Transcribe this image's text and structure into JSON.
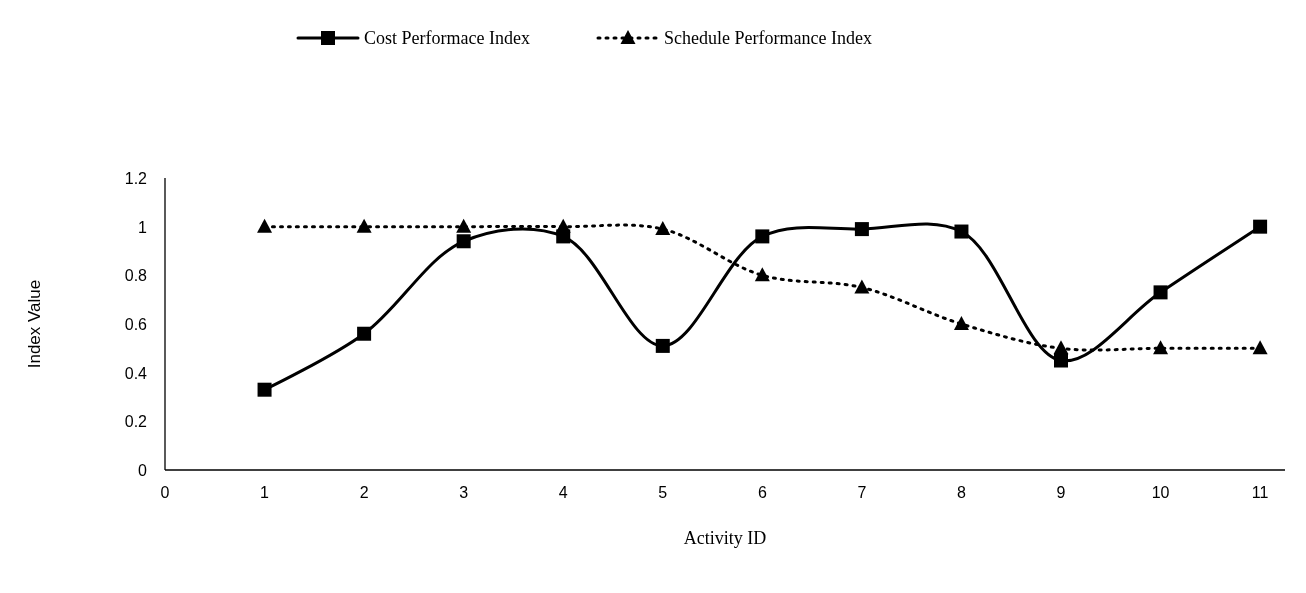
{
  "chart_data": {
    "type": "line",
    "xlabel": "Activity ID",
    "ylabel": "Index Value",
    "x": [
      1,
      2,
      3,
      4,
      5,
      6,
      7,
      8,
      9,
      10,
      11
    ],
    "xlim": [
      0,
      11.25
    ],
    "xticks": [
      0,
      1,
      2,
      3,
      4,
      5,
      6,
      7,
      8,
      9,
      10,
      11
    ],
    "ylim": [
      0,
      1.2
    ],
    "yticks": [
      0,
      0.2,
      0.4,
      0.6,
      0.8,
      1,
      1.2
    ],
    "legend": "top",
    "series": [
      {
        "name": "Cost Performace Index",
        "color": "#000000",
        "marker": "square",
        "line_style": "solid",
        "values": [
          0.33,
          0.56,
          0.94,
          0.96,
          0.51,
          0.96,
          0.99,
          0.98,
          0.45,
          0.73,
          1.0
        ]
      },
      {
        "name": "Schedule Performance Index",
        "color": "#000000",
        "marker": "triangle",
        "line_style": "dotted",
        "values": [
          1,
          1,
          1,
          1,
          0.99,
          0.8,
          0.75,
          0.6,
          0.5,
          0.5,
          0.5
        ]
      }
    ]
  }
}
